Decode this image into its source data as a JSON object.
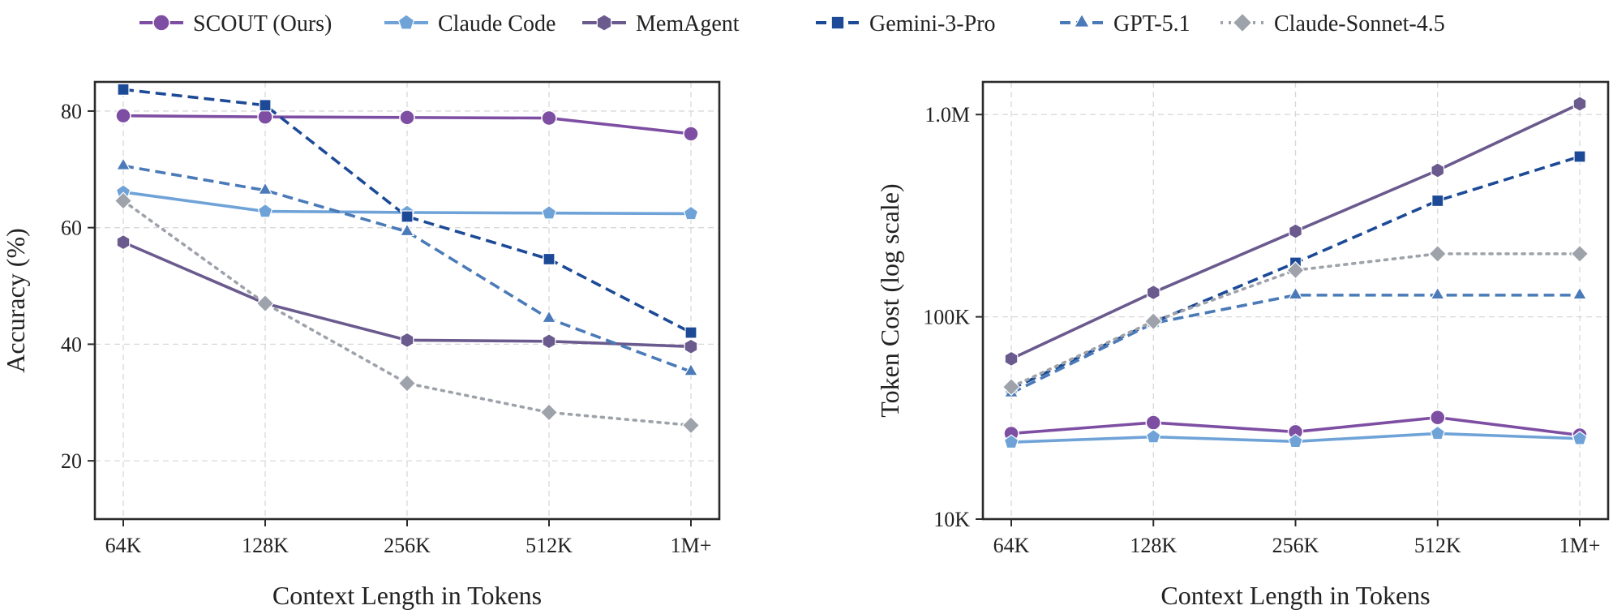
{
  "legend": [
    {
      "name": "SCOUT (Ours)",
      "color": "#7e4ea3",
      "dash": "solid",
      "marker": "circle"
    },
    {
      "name": "Claude Code",
      "color": "#6fa3d8",
      "dash": "solid",
      "marker": "pentagon"
    },
    {
      "name": "MemAgent",
      "color": "#6a5a8e",
      "dash": "solid",
      "marker": "hexagon"
    },
    {
      "name": "Gemini-3-Pro",
      "color": "#1c4a96",
      "dash": "dashed",
      "marker": "square"
    },
    {
      "name": "GPT-5.1",
      "color": "#4a7ab8",
      "dash": "dashed",
      "marker": "triangle"
    },
    {
      "name": "Claude-Sonnet-4.5",
      "color": "#9ea2aa",
      "dash": "dotted",
      "marker": "diamond"
    }
  ],
  "chart_data": [
    {
      "type": "line",
      "xlabel": "Context Length in Tokens",
      "ylabel": "Accuracy (%)",
      "categories": [
        "64K",
        "128K",
        "256K",
        "512K",
        "1M+"
      ],
      "ylim": [
        10,
        85
      ],
      "yticks": [
        20,
        40,
        60,
        80
      ],
      "ytick_labels": [
        "20",
        "40",
        "60",
        "80"
      ],
      "grid": true,
      "series": [
        {
          "name": "SCOUT (Ours)",
          "values": [
            79.2,
            79.0,
            78.9,
            78.8,
            76.1
          ]
        },
        {
          "name": "Claude Code",
          "values": [
            66.1,
            62.8,
            62.6,
            62.5,
            62.4
          ]
        },
        {
          "name": "MemAgent",
          "values": [
            57.5,
            47.0,
            40.7,
            40.5,
            39.6
          ]
        },
        {
          "name": "Gemini-3-Pro",
          "values": [
            83.7,
            81.0,
            61.9,
            54.6,
            42.0
          ]
        },
        {
          "name": "GPT-5.1",
          "values": [
            70.6,
            66.4,
            59.3,
            44.4,
            35.3
          ]
        },
        {
          "name": "Claude-Sonnet-4.5",
          "values": [
            64.6,
            47.0,
            33.3,
            28.3,
            26.1
          ]
        }
      ]
    },
    {
      "type": "line",
      "xlabel": "Context Length in Tokens",
      "ylabel": "Token Cost (log scale)",
      "yscale": "log",
      "categories": [
        "64K",
        "128K",
        "256K",
        "512K",
        "1M+"
      ],
      "ylim": [
        10000,
        1450000
      ],
      "yticks": [
        10000,
        100000,
        1000000
      ],
      "ytick_labels": [
        "10K",
        "100K",
        "1.0M"
      ],
      "grid": true,
      "series": [
        {
          "name": "SCOUT (Ours)",
          "values": [
            26500,
            30000,
            27000,
            31800,
            26000
          ]
        },
        {
          "name": "Claude Code",
          "values": [
            24000,
            25500,
            24200,
            26500,
            25000
          ]
        },
        {
          "name": "MemAgent",
          "values": [
            62000,
            132000,
            265000,
            530000,
            1130000
          ]
        },
        {
          "name": "Gemini-3-Pro",
          "values": [
            44000,
            94000,
            185000,
            375000,
            620000
          ]
        },
        {
          "name": "GPT-5.1",
          "values": [
            42000,
            93000,
            128000,
            128000,
            128000
          ]
        },
        {
          "name": "Claude-Sonnet-4.5",
          "values": [
            45000,
            95000,
            170000,
            205000,
            205000
          ]
        }
      ]
    }
  ]
}
